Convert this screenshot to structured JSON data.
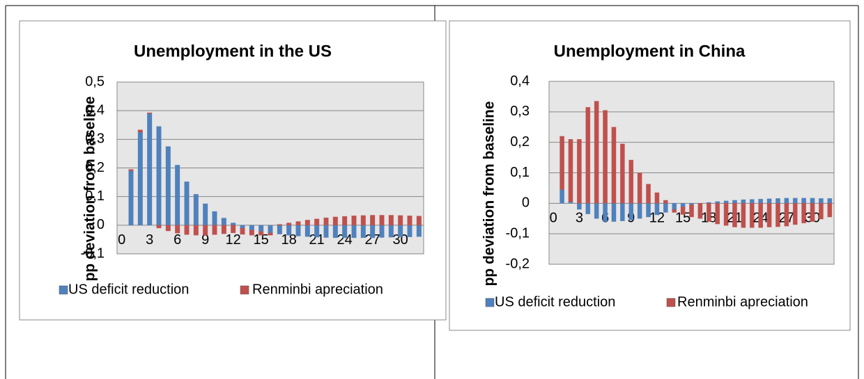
{
  "chart_data": [
    {
      "type": "bar",
      "stacked": true,
      "title": "Unemployment in the US",
      "y_label": "pp deviation from baseline",
      "categories": [
        "0",
        null,
        null,
        "3",
        null,
        null,
        "6",
        null,
        null,
        "9",
        null,
        null,
        "12",
        null,
        null,
        "15",
        null,
        null,
        "18",
        null,
        null,
        "21",
        null,
        null,
        "24",
        null,
        null,
        "27",
        null,
        null,
        "30",
        null,
        null
      ],
      "series": [
        {
          "name": "US deficit reduction",
          "color": "#4f81bd",
          "values": [
            0,
            0.19,
            0.325,
            0.39,
            0.345,
            0.275,
            0.21,
            0.152,
            0.108,
            0.075,
            0.048,
            0.025,
            0.008,
            -0.01,
            -0.017,
            -0.022,
            -0.027,
            -0.031,
            -0.035,
            -0.038,
            -0.04,
            -0.042,
            -0.043,
            -0.044,
            -0.044,
            -0.044,
            -0.044,
            -0.044,
            -0.043,
            -0.042,
            -0.041,
            -0.041,
            -0.04
          ]
        },
        {
          "name": "Renminbi apreciation",
          "color": "#c0504d",
          "values": [
            0,
            0.005,
            0.008,
            0.003,
            -0.01,
            -0.02,
            -0.028,
            -0.033,
            -0.035,
            -0.035,
            -0.033,
            -0.03,
            -0.027,
            -0.022,
            -0.018,
            -0.013,
            -0.008,
            0.003,
            0.008,
            0.013,
            0.018,
            0.022,
            0.026,
            0.029,
            0.031,
            0.033,
            0.034,
            0.035,
            0.035,
            0.035,
            0.034,
            0.033,
            0.032
          ]
        }
      ],
      "ylim": [
        -0.1,
        0.5
      ],
      "yticks": [
        {
          "value": -0.1,
          "label": "-0,1"
        },
        0,
        {
          "value": 0.1,
          "label": "0,1"
        },
        {
          "value": 0.2,
          "label": "0,2"
        },
        {
          "value": 0.3,
          "label": "0,3"
        },
        {
          "value": 0.4,
          "label": "0,4"
        },
        {
          "value": 0.5,
          "label": "0,5"
        }
      ],
      "grid": true,
      "legend": "bottom"
    },
    {
      "type": "bar",
      "stacked": true,
      "title": "Unemployment in China",
      "y_label": "pp deviation from baseline",
      "categories": [
        "0",
        null,
        null,
        "3",
        null,
        null,
        "6",
        null,
        null,
        "9",
        null,
        null,
        "12",
        null,
        null,
        "15",
        null,
        null,
        "18",
        null,
        null,
        "21",
        null,
        null,
        "24",
        null,
        null,
        "27",
        null,
        null,
        "30",
        null,
        null
      ],
      "series": [
        {
          "name": "US deficit reduction",
          "color": "#4f81bd",
          "values": [
            0,
            0.045,
            0.005,
            -0.02,
            -0.035,
            -0.05,
            -0.06,
            -0.06,
            -0.058,
            -0.055,
            -0.05,
            -0.045,
            -0.038,
            -0.03,
            -0.02,
            -0.012,
            -0.005,
            0,
            0.003,
            0.006,
            0.008,
            0.01,
            0.012,
            0.013,
            0.014,
            0.015,
            0.016,
            0.017,
            0.017,
            0.017,
            0.017,
            0.016,
            0.016
          ]
        },
        {
          "name": "Renminbi apreciation",
          "color": "#c0504d",
          "values": [
            0,
            0.175,
            0.205,
            0.21,
            0.315,
            0.335,
            0.305,
            0.25,
            0.195,
            0.142,
            0.1,
            0.063,
            0.035,
            0.01,
            -0.01,
            -0.025,
            -0.04,
            -0.05,
            -0.06,
            -0.068,
            -0.073,
            -0.078,
            -0.08,
            -0.08,
            -0.08,
            -0.078,
            -0.077,
            -0.075,
            -0.07,
            -0.065,
            -0.06,
            -0.052,
            -0.045
          ]
        }
      ],
      "ylim": [
        -0.2,
        0.4
      ],
      "yticks": [
        {
          "value": -0.2,
          "label": "-0,2"
        },
        {
          "value": -0.1,
          "label": "-0,1"
        },
        0,
        {
          "value": 0.1,
          "label": "0,1"
        },
        {
          "value": 0.2,
          "label": "0,2"
        },
        {
          "value": 0.3,
          "label": "0,3"
        },
        {
          "value": 0.4,
          "label": "0,4"
        }
      ],
      "grid": true,
      "legend": "bottom"
    }
  ]
}
